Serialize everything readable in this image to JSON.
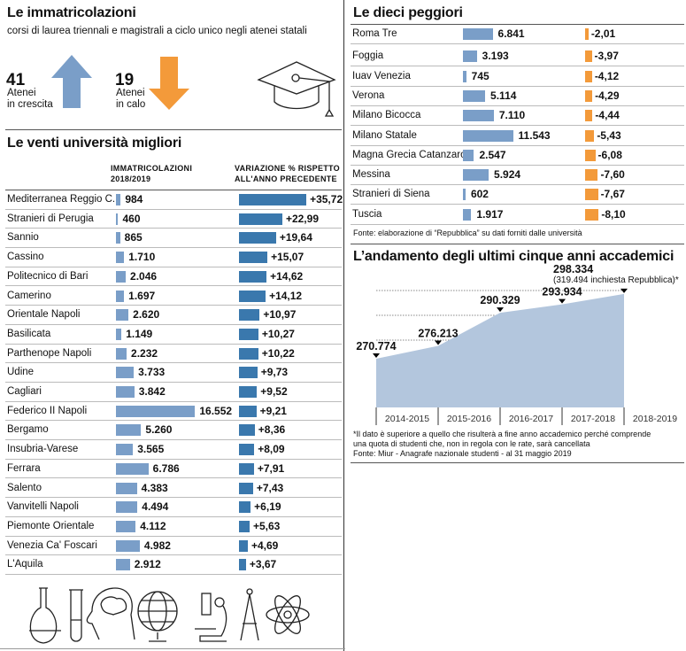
{
  "header": {
    "title": "Le immatricolazioni",
    "subtitle": "corsi di laurea triennali e magistrali a ciclo unico negli atenei statali"
  },
  "stats": {
    "up_count": "41",
    "up_label1": "Atenei",
    "up_label2": "in crescita",
    "down_count": "19",
    "down_label1": "Atenei",
    "down_label2": "in calo"
  },
  "colors": {
    "blue_bar": "#7a9ec8",
    "dark_blue_bar": "#3a78ad",
    "orange": "#f39a3a",
    "area": "#b3c6dd"
  },
  "icons": [
    "arrow-up-icon",
    "arrow-down-icon",
    "graduation-cap-icon",
    "flask-icon",
    "test-tube-icon",
    "head-brain-icon",
    "globe-icon",
    "microscope-icon",
    "compass-icon",
    "atom-icon"
  ],
  "chart_data": [
    {
      "type": "table",
      "title": "Le venti università migliori",
      "columns": [
        "",
        "IMMATRICOLAZIONI 2018/2019",
        "VARIAZIONE % RISPETTO ALL'ANNO PRECEDENTE"
      ],
      "col1_line1": "IMMATRICOLAZIONI",
      "col1_line2": "2018/2019",
      "col2_line1": "VARIAZIONE % RISPETTO",
      "col2_line2": "ALL'ANNO PRECEDENTE",
      "rows": [
        {
          "name": "Mediterranea Reggio C.",
          "enrolled": 984,
          "enrolled_label": "984",
          "change": 35.72,
          "change_label": "+35,72"
        },
        {
          "name": "Stranieri di Perugia",
          "enrolled": 460,
          "enrolled_label": "460",
          "change": 22.99,
          "change_label": "+22,99"
        },
        {
          "name": "Sannio",
          "enrolled": 865,
          "enrolled_label": "865",
          "change": 19.64,
          "change_label": "+19,64"
        },
        {
          "name": "Cassino",
          "enrolled": 1710,
          "enrolled_label": "1.710",
          "change": 15.07,
          "change_label": "+15,07"
        },
        {
          "name": "Politecnico di Bari",
          "enrolled": 2046,
          "enrolled_label": "2.046",
          "change": 14.62,
          "change_label": "+14,62"
        },
        {
          "name": "Camerino",
          "enrolled": 1697,
          "enrolled_label": "1.697",
          "change": 14.12,
          "change_label": "+14,12"
        },
        {
          "name": "Orientale Napoli",
          "enrolled": 2620,
          "enrolled_label": "2.620",
          "change": 10.97,
          "change_label": "+10,97"
        },
        {
          "name": "Basilicata",
          "enrolled": 1149,
          "enrolled_label": "1.149",
          "change": 10.27,
          "change_label": "+10,27"
        },
        {
          "name": "Parthenope Napoli",
          "enrolled": 2232,
          "enrolled_label": "2.232",
          "change": 10.22,
          "change_label": "+10,22"
        },
        {
          "name": "Udine",
          "enrolled": 3733,
          "enrolled_label": "3.733",
          "change": 9.73,
          "change_label": "+9,73"
        },
        {
          "name": "Cagliari",
          "enrolled": 3842,
          "enrolled_label": "3.842",
          "change": 9.52,
          "change_label": "+9,52"
        },
        {
          "name": "Federico II Napoli",
          "enrolled": 16552,
          "enrolled_label": "16.552",
          "change": 9.21,
          "change_label": "+9,21"
        },
        {
          "name": "Bergamo",
          "enrolled": 5260,
          "enrolled_label": "5.260",
          "change": 8.36,
          "change_label": "+8,36"
        },
        {
          "name": "Insubria-Varese",
          "enrolled": 3565,
          "enrolled_label": "3.565",
          "change": 8.09,
          "change_label": "+8,09"
        },
        {
          "name": "Ferrara",
          "enrolled": 6786,
          "enrolled_label": "6.786",
          "change": 7.91,
          "change_label": "+7,91"
        },
        {
          "name": "Salento",
          "enrolled": 4383,
          "enrolled_label": "4.383",
          "change": 7.43,
          "change_label": "+7,43"
        },
        {
          "name": "Vanvitelli Napoli",
          "enrolled": 4494,
          "enrolled_label": "4.494",
          "change": 6.19,
          "change_label": "+6,19"
        },
        {
          "name": "Piemonte Orientale",
          "enrolled": 4112,
          "enrolled_label": "4.112",
          "change": 5.63,
          "change_label": "+5,63"
        },
        {
          "name": "Venezia Ca' Foscari",
          "enrolled": 4982,
          "enrolled_label": "4.982",
          "change": 4.69,
          "change_label": "+4,69"
        },
        {
          "name": "L'Aquila",
          "enrolled": 2912,
          "enrolled_label": "2.912",
          "change": 3.67,
          "change_label": "+3,67"
        }
      ]
    },
    {
      "type": "table",
      "title": "Le dieci peggiori",
      "rows": [
        {
          "name": "Roma Tre",
          "enrolled": 6841,
          "enrolled_label": "6.841",
          "change": -2.01,
          "change_label": "-2,01"
        },
        {
          "name": "Foggia",
          "enrolled": 3193,
          "enrolled_label": "3.193",
          "change": -3.97,
          "change_label": "-3,97"
        },
        {
          "name": "Iuav Venezia",
          "enrolled": 745,
          "enrolled_label": "745",
          "change": -4.12,
          "change_label": "-4,12"
        },
        {
          "name": "Verona",
          "enrolled": 5114,
          "enrolled_label": "5.114",
          "change": -4.29,
          "change_label": "-4,29"
        },
        {
          "name": "Milano Bicocca",
          "enrolled": 7110,
          "enrolled_label": "7.110",
          "change": -4.44,
          "change_label": "-4,44"
        },
        {
          "name": "Milano Statale",
          "enrolled": 11543,
          "enrolled_label": "11.543",
          "change": -5.43,
          "change_label": "-5,43"
        },
        {
          "name": "Magna Grecia Catanzaro",
          "enrolled": 2547,
          "enrolled_label": "2.547",
          "change": -6.08,
          "change_label": "-6,08"
        },
        {
          "name": "Messina",
          "enrolled": 5924,
          "enrolled_label": "5.924",
          "change": -7.6,
          "change_label": "-7,60"
        },
        {
          "name": "Stranieri di Siena",
          "enrolled": 602,
          "enrolled_label": "602",
          "change": -7.67,
          "change_label": "-7,67"
        },
        {
          "name": "Tuscia",
          "enrolled": 1917,
          "enrolled_label": "1.917",
          "change": -8.1,
          "change_label": "-8,10"
        }
      ],
      "source": "Fonte: elaborazione di “Repubblica” su dati forniti dalle università"
    },
    {
      "type": "area",
      "title": "L’andamento degli ultimi cinque anni accademici",
      "categories": [
        "2014-2015",
        "2015-2016",
        "2016-2017",
        "2017-2018",
        "2018-2019"
      ],
      "values": [
        270774,
        276213,
        290329,
        293934,
        298334
      ],
      "value_labels": [
        "270.774",
        "276.213",
        "290.329",
        "293.934",
        "298.334"
      ],
      "annotation": "(319.494 inchiesta Repubblica)*",
      "grid": true,
      "footnote1": "*Il dato è superiore a quello che risulterà a fine anno accademico perché comprende",
      "footnote2": "una quota di studenti che, non in regola con le rate, sarà cancellata",
      "source": "Fonte: Miur - Anagrafe nazionale studenti - al 31 maggio 2019"
    }
  ]
}
